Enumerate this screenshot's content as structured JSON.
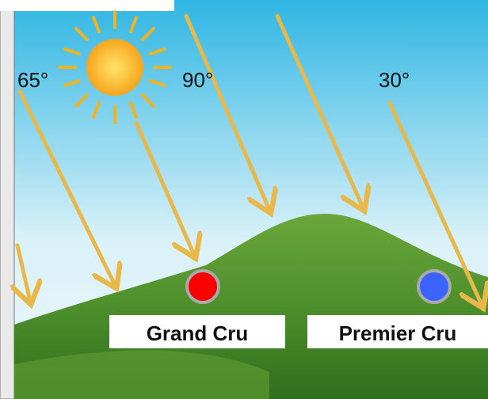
{
  "angle_labels": [
    "65°",
    "90°",
    "30°"
  ],
  "sites": [
    {
      "label": "Grand Cru"
    },
    {
      "label": "Premier Cru"
    }
  ]
}
